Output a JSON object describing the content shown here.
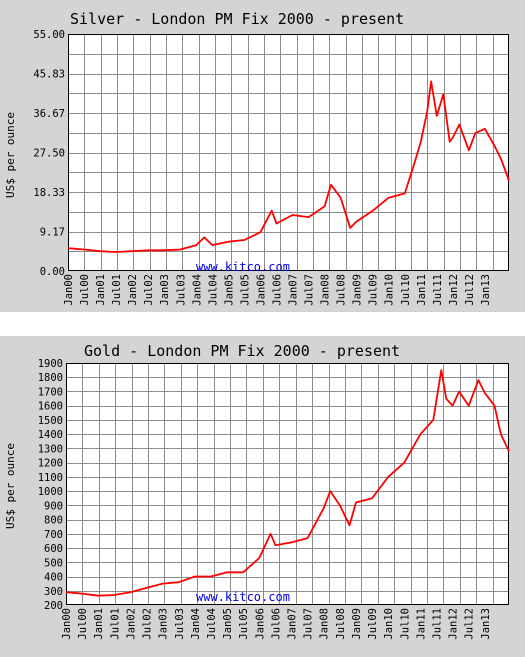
{
  "chart_data": [
    {
      "type": "line",
      "title": "Silver - London PM Fix 2000 - present",
      "ylabel": "US$ per ounce",
      "watermark": "www.kitco.com",
      "ylim": [
        0,
        55
      ],
      "ytick_labels": [
        "0.00",
        "9.17",
        "18.33",
        "27.50",
        "36.67",
        "45.83",
        "55.00"
      ],
      "ytick_values": [
        0,
        9.17,
        18.33,
        27.5,
        36.67,
        45.83,
        55.0
      ],
      "xlim": [
        2000.0,
        2013.75
      ],
      "xtick_labels": [
        "Jan00",
        "Jul00",
        "Jan01",
        "Jul01",
        "Jan02",
        "Jul02",
        "Jan03",
        "Jul03",
        "Jan04",
        "Jul04",
        "Jan05",
        "Jul05",
        "Jan06",
        "Jul06",
        "Jan07",
        "Jul07",
        "Jan08",
        "Jul08",
        "Jan09",
        "Jul09",
        "Jan10",
        "Jul10",
        "Jan11",
        "Jul11",
        "Jan12",
        "Jul12",
        "Jan13"
      ],
      "xtick_values": [
        2000.0,
        2000.5,
        2001.0,
        2001.5,
        2002.0,
        2002.5,
        2003.0,
        2003.5,
        2004.0,
        2004.5,
        2005.0,
        2005.5,
        2006.0,
        2006.5,
        2007.0,
        2007.5,
        2008.0,
        2008.5,
        2009.0,
        2009.5,
        2010.0,
        2010.5,
        2011.0,
        2011.5,
        2012.0,
        2012.5,
        2013.0
      ],
      "grid": true,
      "line_color": "#ff0000",
      "x": [
        2000.0,
        2000.5,
        2001.0,
        2001.5,
        2002.0,
        2002.5,
        2003.0,
        2003.5,
        2004.0,
        2004.25,
        2004.5,
        2005.0,
        2005.5,
        2006.0,
        2006.35,
        2006.5,
        2007.0,
        2007.5,
        2008.0,
        2008.2,
        2008.5,
        2008.8,
        2009.0,
        2009.5,
        2010.0,
        2010.5,
        2010.8,
        2011.0,
        2011.2,
        2011.32,
        2011.5,
        2011.7,
        2011.9,
        2012.0,
        2012.2,
        2012.5,
        2012.7,
        2013.0,
        2013.3,
        2013.5,
        2013.75
      ],
      "values": [
        5.3,
        5.0,
        4.6,
        4.4,
        4.6,
        4.8,
        4.8,
        5.0,
        6.0,
        7.8,
        6.0,
        6.8,
        7.2,
        9.0,
        14.0,
        11.0,
        13.0,
        12.5,
        15.0,
        20.0,
        17.0,
        10.0,
        11.5,
        14.0,
        17.0,
        18.0,
        25.0,
        30.0,
        37.0,
        44.0,
        36.0,
        41.0,
        30.0,
        31.0,
        34.0,
        28.0,
        32.0,
        33.0,
        29.0,
        26.0,
        21.0
      ]
    },
    {
      "type": "line",
      "title": "Gold - London PM Fix 2000 - present",
      "ylabel": "US$ per ounce",
      "watermark": "www.kitco.com",
      "ylim": [
        200,
        1900
      ],
      "ytick_labels": [
        "200",
        "300",
        "400",
        "500",
        "600",
        "700",
        "800",
        "900",
        "1000",
        "1100",
        "1200",
        "1300",
        "1400",
        "1500",
        "1600",
        "1700",
        "1800",
        "1900"
      ],
      "ytick_values": [
        200,
        300,
        400,
        500,
        600,
        700,
        800,
        900,
        1000,
        1100,
        1200,
        1300,
        1400,
        1500,
        1600,
        1700,
        1800,
        1900
      ],
      "xlim": [
        2000.0,
        2013.75
      ],
      "xtick_labels": [
        "Jan00",
        "Jul00",
        "Jan01",
        "Jul01",
        "Jan02",
        "Jul02",
        "Jan03",
        "Jul03",
        "Jan04",
        "Jul04",
        "Jan05",
        "Jul05",
        "Jan06",
        "Jul06",
        "Jan07",
        "Jul07",
        "Jan08",
        "Jul08",
        "Jan09",
        "Jul09",
        "Jan10",
        "Jul10",
        "Jan11",
        "Jul11",
        "Jan12",
        "Jul12",
        "Jan13"
      ],
      "xtick_values": [
        2000.0,
        2000.5,
        2001.0,
        2001.5,
        2002.0,
        2002.5,
        2003.0,
        2003.5,
        2004.0,
        2004.5,
        2005.0,
        2005.5,
        2006.0,
        2006.5,
        2007.0,
        2007.5,
        2008.0,
        2008.5,
        2009.0,
        2009.5,
        2010.0,
        2010.5,
        2011.0,
        2011.5,
        2012.0,
        2012.5,
        2013.0
      ],
      "grid": true,
      "line_color": "#ff0000",
      "x": [
        2000.0,
        2000.5,
        2001.0,
        2001.5,
        2002.0,
        2002.5,
        2003.0,
        2003.5,
        2004.0,
        2004.5,
        2005.0,
        2005.5,
        2006.0,
        2006.35,
        2006.5,
        2007.0,
        2007.5,
        2008.0,
        2008.2,
        2008.5,
        2008.8,
        2009.0,
        2009.5,
        2010.0,
        2010.5,
        2011.0,
        2011.4,
        2011.65,
        2011.8,
        2012.0,
        2012.2,
        2012.5,
        2012.8,
        2013.0,
        2013.3,
        2013.5,
        2013.75
      ],
      "values": [
        290,
        280,
        265,
        270,
        290,
        320,
        350,
        360,
        400,
        400,
        430,
        430,
        530,
        700,
        620,
        640,
        670,
        880,
        1000,
        900,
        760,
        920,
        950,
        1100,
        1200,
        1400,
        1500,
        1850,
        1650,
        1600,
        1700,
        1600,
        1780,
        1690,
        1600,
        1400,
        1280
      ]
    }
  ]
}
